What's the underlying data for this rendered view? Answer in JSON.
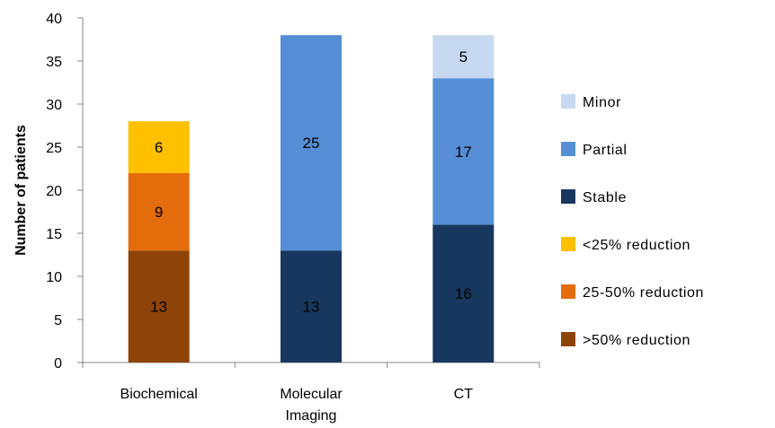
{
  "chart_data": {
    "type": "bar",
    "stacked": true,
    "ylabel": "Number of patients",
    "xlabel": "",
    "ylim": [
      0,
      40
    ],
    "yticks": [
      0,
      5,
      10,
      15,
      20,
      25,
      30,
      35,
      40
    ],
    "grid": false,
    "legend_position": "right",
    "categories": [
      [
        "Biochemical"
      ],
      [
        "Molecular",
        "Imaging"
      ],
      [
        "CT"
      ]
    ],
    "series": [
      {
        "name": ">50% reduction",
        "color": "#8E4408",
        "values": [
          13,
          0,
          0
        ]
      },
      {
        "name": "25-50% reduction",
        "color": "#E46C0A",
        "values": [
          9,
          0,
          0
        ]
      },
      {
        "name": "<25% reduction",
        "color": "#FFC000",
        "values": [
          6,
          0,
          0
        ]
      },
      {
        "name": "Stable",
        "color": "#17375E",
        "values": [
          0,
          13,
          16
        ]
      },
      {
        "name": "Partial",
        "color": "#558ED5",
        "values": [
          0,
          25,
          17
        ]
      },
      {
        "name": "Minor",
        "color": "#C6D9F1",
        "values": [
          0,
          0,
          5
        ]
      }
    ],
    "legend_order": [
      "Minor",
      "Partial",
      "Stable",
      "<25% reduction",
      "25-50% reduction",
      ">50% reduction"
    ]
  }
}
